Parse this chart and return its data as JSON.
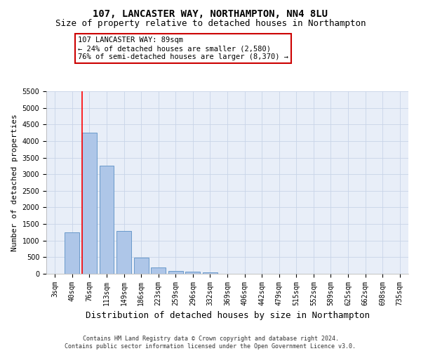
{
  "title": "107, LANCASTER WAY, NORTHAMPTON, NN4 8LU",
  "subtitle": "Size of property relative to detached houses in Northampton",
  "xlabel": "Distribution of detached houses by size in Northampton",
  "ylabel": "Number of detached properties",
  "categories": [
    "3sqm",
    "40sqm",
    "76sqm",
    "113sqm",
    "149sqm",
    "186sqm",
    "223sqm",
    "259sqm",
    "296sqm",
    "332sqm",
    "369sqm",
    "406sqm",
    "442sqm",
    "479sqm",
    "515sqm",
    "552sqm",
    "589sqm",
    "625sqm",
    "662sqm",
    "698sqm",
    "735sqm"
  ],
  "values": [
    0,
    1250,
    4250,
    3250,
    1300,
    480,
    200,
    90,
    70,
    50,
    0,
    0,
    0,
    0,
    0,
    0,
    0,
    0,
    0,
    0,
    0
  ],
  "bar_color": "#aec6e8",
  "bar_edge_color": "#5a8fc4",
  "red_line_index": 2,
  "annotation_text": "107 LANCASTER WAY: 89sqm\n← 24% of detached houses are smaller (2,580)\n76% of semi-detached houses are larger (8,370) →",
  "annotation_box_color": "#ffffff",
  "annotation_box_edge_color": "#cc0000",
  "footer_line1": "Contains HM Land Registry data © Crown copyright and database right 2024.",
  "footer_line2": "Contains public sector information licensed under the Open Government Licence v3.0.",
  "ylim": [
    0,
    5500
  ],
  "yticks": [
    0,
    500,
    1000,
    1500,
    2000,
    2500,
    3000,
    3500,
    4000,
    4500,
    5000,
    5500
  ],
  "bg_color": "#e8eef8",
  "grid_color": "#c8d4e8",
  "title_fontsize": 10,
  "subtitle_fontsize": 9,
  "tick_fontsize": 7,
  "ylabel_fontsize": 8,
  "xlabel_fontsize": 9
}
